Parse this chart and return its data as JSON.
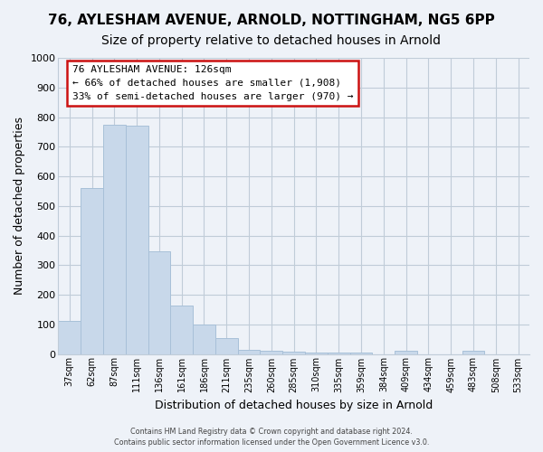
{
  "title": "76, AYLESHAM AVENUE, ARNOLD, NOTTINGHAM, NG5 6PP",
  "subtitle": "Size of property relative to detached houses in Arnold",
  "xlabel": "Distribution of detached houses by size in Arnold",
  "ylabel": "Number of detached properties",
  "categories": [
    "37sqm",
    "62sqm",
    "87sqm",
    "111sqm",
    "136sqm",
    "161sqm",
    "186sqm",
    "211sqm",
    "235sqm",
    "260sqm",
    "285sqm",
    "310sqm",
    "335sqm",
    "359sqm",
    "384sqm",
    "409sqm",
    "434sqm",
    "459sqm",
    "483sqm",
    "508sqm",
    "533sqm"
  ],
  "values": [
    113,
    560,
    775,
    770,
    347,
    163,
    98,
    55,
    15,
    10,
    7,
    5,
    5,
    4,
    0,
    10,
    0,
    0,
    10,
    0,
    0
  ],
  "bar_color": "#c8d8ea",
  "bar_edge_color": "#a8c0d8",
  "annotation_line1": "76 AYLESHAM AVENUE: 126sqm",
  "annotation_line2": "← 66% of detached houses are smaller (1,908)",
  "annotation_line3": "33% of semi-detached houses are larger (970) →",
  "ann_box_fc": "#ffffff",
  "ann_box_ec": "#cc1111",
  "footer1": "Contains HM Land Registry data © Crown copyright and database right 2024.",
  "footer2": "Contains public sector information licensed under the Open Government Licence v3.0.",
  "bg_color": "#eef2f8",
  "plot_bg_color": "#eef2f8",
  "ylim": [
    0,
    1000
  ],
  "yticks": [
    0,
    100,
    200,
    300,
    400,
    500,
    600,
    700,
    800,
    900,
    1000
  ],
  "grid_color": "#c0ccd8",
  "title_fontsize": 11,
  "subtitle_fontsize": 10
}
